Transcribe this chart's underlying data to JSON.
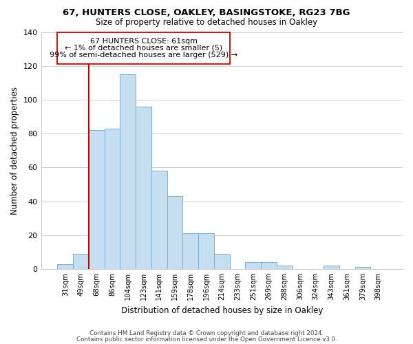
{
  "title1": "67, HUNTERS CLOSE, OAKLEY, BASINGSTOKE, RG23 7BG",
  "title2": "Size of property relative to detached houses in Oakley",
  "xlabel": "Distribution of detached houses by size in Oakley",
  "ylabel": "Number of detached properties",
  "bar_labels": [
    "31sqm",
    "49sqm",
    "68sqm",
    "86sqm",
    "104sqm",
    "123sqm",
    "141sqm",
    "159sqm",
    "178sqm",
    "196sqm",
    "214sqm",
    "233sqm",
    "251sqm",
    "269sqm",
    "288sqm",
    "306sqm",
    "324sqm",
    "343sqm",
    "361sqm",
    "379sqm",
    "398sqm"
  ],
  "bar_heights": [
    3,
    9,
    82,
    83,
    115,
    96,
    58,
    43,
    21,
    21,
    9,
    0,
    4,
    4,
    2,
    0,
    0,
    2,
    0,
    1,
    0
  ],
  "bar_color": "#c5dff0",
  "bar_edge_color": "#7ab0d4",
  "vline_color": "#cc0000",
  "ylim": [
    0,
    140
  ],
  "yticks": [
    0,
    20,
    40,
    60,
    80,
    100,
    120,
    140
  ],
  "box_text_line1": "67 HUNTERS CLOSE: 61sqm",
  "box_text_line2": "← 1% of detached houses are smaller (5)",
  "box_text_line3": "99% of semi-detached houses are larger (529) →",
  "footer1": "Contains HM Land Registry data © Crown copyright and database right 2024.",
  "footer2": "Contains public sector information licensed under the Open Government Licence v3.0."
}
